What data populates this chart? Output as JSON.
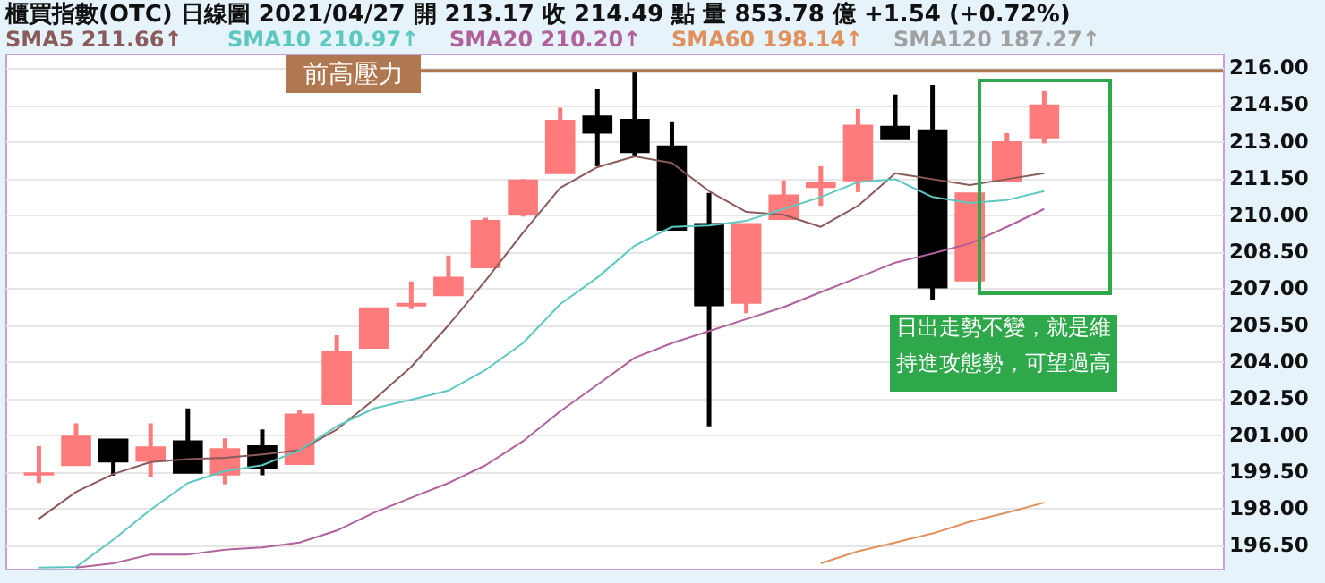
{
  "chart_data": {
    "type": "candlestick",
    "title": "櫃買指數(OTC)  日線圖  2021/04/27  開 213.17  收 214.49 點  量 853.78 億  +1.54 (+0.72%)",
    "categories": [
      null,
      null,
      null,
      null,
      null,
      null,
      null,
      null,
      null,
      null,
      null,
      null,
      null,
      null,
      null,
      null,
      null,
      null,
      null,
      null,
      null,
      null,
      null,
      null,
      null,
      null,
      null,
      null
    ],
    "ohlc": [
      [
        199.4,
        200.56,
        199.05,
        199.45
      ],
      [
        199.78,
        201.49,
        199.78,
        200.95
      ],
      [
        200.83,
        200.83,
        199.35,
        199.93
      ],
      [
        199.95,
        201.49,
        199.3,
        200.51
      ],
      [
        200.76,
        202.1,
        199.47,
        199.47
      ],
      [
        199.4,
        200.88,
        199.0,
        200.44
      ],
      [
        200.56,
        201.24,
        199.37,
        199.66
      ],
      [
        199.83,
        202.05,
        199.83,
        201.85
      ],
      [
        202.27,
        205.09,
        202.27,
        204.41
      ],
      [
        204.58,
        206.19,
        204.58,
        206.19
      ],
      [
        206.3,
        207.29,
        206.16,
        206.38
      ],
      [
        206.72,
        208.35,
        206.72,
        207.45
      ],
      [
        207.87,
        209.89,
        207.87,
        209.77
      ],
      [
        210.06,
        211.47,
        209.94,
        211.42
      ],
      [
        211.71,
        214.39,
        211.71,
        213.86
      ],
      [
        214.03,
        215.17,
        212.0,
        213.37
      ],
      [
        213.9,
        215.85,
        212.44,
        212.57
      ],
      [
        212.81,
        213.83,
        209.4,
        209.4
      ],
      [
        209.64,
        210.91,
        201.37,
        206.31
      ],
      [
        206.41,
        209.64,
        205.99,
        209.64
      ],
      [
        209.84,
        211.42,
        209.84,
        210.81
      ],
      [
        211.15,
        212.0,
        210.38,
        211.3
      ],
      [
        211.42,
        214.34,
        210.94,
        213.66
      ],
      [
        213.61,
        214.93,
        213.1,
        213.1
      ],
      [
        213.47,
        215.32,
        206.55,
        207.04
      ],
      [
        207.33,
        210.89,
        207.33,
        210.89
      ],
      [
        211.4,
        213.35,
        211.4,
        212.98
      ],
      [
        213.17,
        215.07,
        212.93,
        214.49
      ]
    ],
    "colors": [
      "#ff7b7b",
      "#ff7b7b",
      "#000000",
      "#ff7b7b",
      "#000000",
      "#ff7b7b",
      "#000000",
      "#ff7b7b",
      "#ff7b7b",
      "#ff7b7b",
      "#ff7b7b",
      "#ff7b7b",
      "#ff7b7b",
      "#ff7b7b",
      "#ff7b7b",
      "#000000",
      "#000000",
      "#000000",
      "#000000",
      "#ff7b7b",
      "#ff7b7b",
      "#ff7b7b",
      "#ff7b7b",
      "#000000",
      "#000000",
      "#ff7b7b",
      "#ff7b7b",
      "#ff7b7b"
    ],
    "series": [
      {
        "name": "SMA5 211.66↑",
        "type": "line",
        "color": "#8b5a5a",
        "values": [
          197.59,
          198.69,
          199.42,
          199.91,
          200.03,
          200.08,
          200.22,
          200.39,
          201.24,
          202.46,
          203.8,
          205.5,
          207.33,
          209.28,
          211.11,
          211.96,
          212.4,
          212.13,
          210.98,
          210.13,
          210.01,
          209.52,
          210.38,
          211.71,
          211.47,
          211.23,
          211.47,
          211.71
        ]
      },
      {
        "name": "SMA10 210.97↑",
        "type": "line",
        "color": "#5cc8c0",
        "values": [
          195.6,
          195.62,
          196.74,
          197.96,
          199.05,
          199.54,
          199.78,
          200.39,
          201.37,
          202.1,
          202.46,
          202.83,
          203.68,
          204.77,
          206.36,
          207.45,
          208.75,
          209.52,
          209.57,
          209.77,
          210.25,
          210.74,
          211.35,
          211.47,
          210.74,
          210.5,
          210.62,
          210.98
        ]
      },
      {
        "name": "SMA20 210.20↑",
        "type": "line",
        "color": "#b0609a",
        "values": [
          null,
          195.6,
          195.77,
          196.13,
          196.13,
          196.33,
          196.42,
          196.62,
          197.11,
          197.84,
          198.45,
          199.05,
          199.78,
          200.76,
          201.98,
          203.07,
          204.17,
          204.77,
          205.26,
          205.75,
          206.24,
          206.85,
          207.45,
          208.06,
          208.43,
          208.84,
          209.52,
          210.25
        ]
      },
      {
        "name": "SMA60 198.14↑",
        "type": "line",
        "color": "#e0905a",
        "values": [
          null,
          null,
          null,
          null,
          null,
          null,
          null,
          null,
          null,
          null,
          null,
          null,
          null,
          null,
          null,
          null,
          null,
          null,
          null,
          null,
          null,
          195.77,
          196.26,
          196.62,
          196.99,
          197.47,
          197.84,
          198.25
        ]
      },
      {
        "name": "SMA120 187.27↑",
        "type": "line",
        "color": "#a0a0a0",
        "values": [
          null,
          null,
          null,
          null,
          null,
          null,
          null,
          null,
          null,
          null,
          null,
          null,
          null,
          null,
          null,
          null,
          null,
          null,
          null,
          null,
          null,
          null,
          null,
          null,
          null,
          null,
          null,
          null
        ]
      }
    ],
    "ylim": [
      195.55,
      216.6
    ],
    "yticks": [
      {
        "value": 196.5,
        "label": "196.50"
      },
      {
        "value": 198,
        "label": "198.00"
      },
      {
        "value": 199.5,
        "label": "199.50"
      },
      {
        "value": 201,
        "label": "201.00"
      },
      {
        "value": 202.5,
        "label": "202.50"
      },
      {
        "value": 204,
        "label": "204.00"
      },
      {
        "value": 205.5,
        "label": "205.50"
      },
      {
        "value": 207,
        "label": "207.00"
      },
      {
        "value": 208.5,
        "label": "208.50"
      },
      {
        "value": 210,
        "label": "210.00"
      },
      {
        "value": 211.5,
        "label": "211.50"
      },
      {
        "value": 213,
        "label": "213.00"
      },
      {
        "value": 214.5,
        "label": "214.50"
      },
      {
        "value": 216,
        "label": "216.00"
      }
    ],
    "ref_lines": [
      {
        "axis": "y",
        "value": 215.9,
        "label": "前高壓力",
        "color": "#b07850"
      }
    ],
    "annotations": [
      "日出走勢不變，就是維持進攻態勢，可望過高"
    ],
    "grid": "y",
    "legend": "top"
  }
}
